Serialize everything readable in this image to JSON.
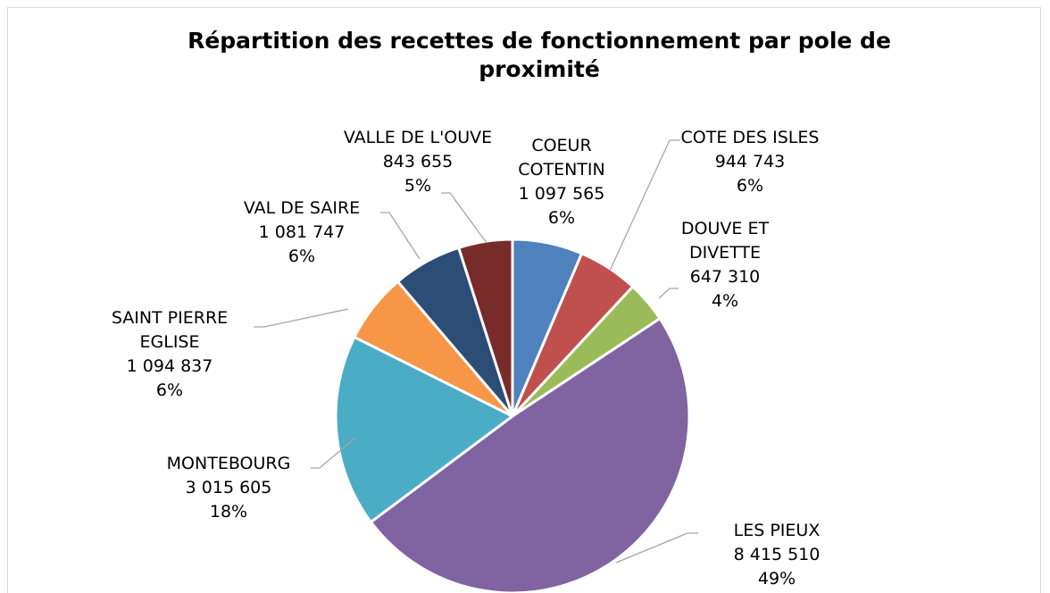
{
  "chart_data": {
    "type": "pie",
    "title": "Répartition des recettes de fonctionnement par pole de proximité",
    "categories": [
      "COEUR COTENTIN",
      "COTE DES ISLES",
      "DOUVE ET DIVETTE",
      "LES PIEUX",
      "MONTEBOURG",
      "SAINT PIERRE EGLISE",
      "VAL DE SAIRE",
      "VALLE DE L'OUVE"
    ],
    "values": [
      1097565,
      944743,
      647310,
      8415510,
      3015605,
      1094837,
      1081747,
      843655
    ],
    "value_labels": [
      "1 097 565",
      "944 743",
      "647 310",
      "8 415 510",
      "3 015 605",
      "1 094 837",
      "1 081 747",
      "843 655"
    ],
    "percent_labels": [
      "6%",
      "6%",
      "4%",
      "49%",
      "18%",
      "6%",
      "6%",
      "5%"
    ],
    "colors": [
      "#4f81bd",
      "#c0504d",
      "#9bbb59",
      "#8064a2",
      "#4bacc6",
      "#f79646",
      "#2c4d75",
      "#772c2a"
    ]
  }
}
